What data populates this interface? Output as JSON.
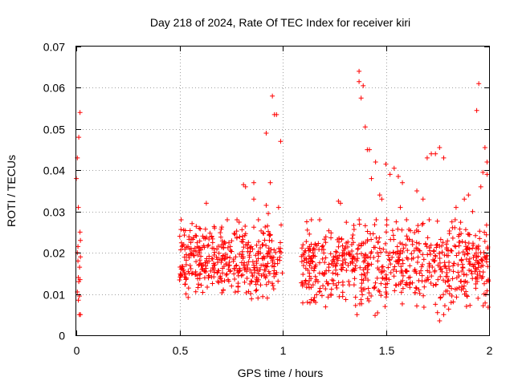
{
  "chart_data": {
    "type": "scatter",
    "title": "Day 218 of 2024, Rate Of TEC Index for receiver kiri",
    "xlabel": "GPS time / hours",
    "ylabel": "ROTI / TECUs",
    "xlim": [
      0,
      2
    ],
    "ylim": [
      0,
      0.07
    ],
    "xticks": [
      0,
      0.5,
      1,
      1.5,
      2
    ],
    "xtick_labels": [
      "0",
      "0.5",
      "1",
      "1.5",
      "2"
    ],
    "yticks": [
      0,
      0.01,
      0.02,
      0.03,
      0.04,
      0.05,
      0.06,
      0.07
    ],
    "ytick_labels": [
      "0",
      "0.01",
      "0.02",
      "0.03",
      "0.04",
      "0.05",
      "0.06",
      "0.07"
    ],
    "grid": true,
    "marker": "+",
    "color": "#ff0000",
    "series": [
      {
        "name": "ROTI",
        "points": [
          [
            0.0,
            0.038
          ],
          [
            0.005,
            0.043
          ],
          [
            0.01,
            0.031
          ],
          [
            0.012,
            0.048
          ],
          [
            0.018,
            0.054
          ],
          [
            0.005,
            0.02
          ],
          [
            0.008,
            0.018
          ],
          [
            0.01,
            0.014
          ],
          [
            0.012,
            0.013
          ],
          [
            0.015,
            0.0095
          ],
          [
            0.018,
            0.025
          ],
          [
            0.02,
            0.023
          ],
          [
            0.02,
            0.019
          ],
          [
            0.015,
            0.005
          ],
          [
            0.02,
            0.005
          ],
          [
            0.005,
            0.0105
          ],
          [
            0.01,
            0.0085
          ],
          [
            0.018,
            0.0135
          ],
          [
            0.008,
            0.0215
          ],
          [
            0.016,
            0.0165
          ],
          [
            0.92,
            0.049
          ],
          [
            0.95,
            0.058
          ],
          [
            0.96,
            0.0535
          ],
          [
            0.97,
            0.0535
          ],
          [
            0.99,
            0.047
          ],
          [
            0.82,
            0.036
          ],
          [
            0.86,
            0.037
          ],
          [
            0.94,
            0.037
          ],
          [
            0.63,
            0.032
          ],
          [
            0.81,
            0.0365
          ],
          [
            0.92,
            0.0315
          ],
          [
            0.86,
            0.033
          ],
          [
            0.98,
            0.031
          ],
          [
            0.93,
            0.0295
          ],
          [
            1.37,
            0.064
          ],
          [
            1.37,
            0.0615
          ],
          [
            1.39,
            0.0605
          ],
          [
            1.38,
            0.0575
          ],
          [
            1.4,
            0.0505
          ],
          [
            1.41,
            0.045
          ],
          [
            1.42,
            0.045
          ],
          [
            1.43,
            0.038
          ],
          [
            1.45,
            0.042
          ],
          [
            1.47,
            0.034
          ],
          [
            1.48,
            0.033
          ],
          [
            1.5,
            0.0415
          ],
          [
            1.52,
            0.039
          ],
          [
            1.54,
            0.0405
          ],
          [
            1.56,
            0.0385
          ],
          [
            1.58,
            0.037
          ],
          [
            1.6,
            0.028
          ],
          [
            1.65,
            0.035
          ],
          [
            1.7,
            0.043
          ],
          [
            1.72,
            0.044
          ],
          [
            1.74,
            0.044
          ],
          [
            1.76,
            0.0455
          ],
          [
            1.78,
            0.043
          ],
          [
            1.95,
            0.061
          ],
          [
            1.94,
            0.0545
          ],
          [
            1.96,
            0.036
          ],
          [
            1.98,
            0.0455
          ],
          [
            1.99,
            0.042
          ],
          [
            1.99,
            0.039
          ],
          [
            1.97,
            0.0395
          ],
          [
            1.27,
            0.0325
          ],
          [
            1.28,
            0.032
          ],
          [
            1.82,
            0.0275
          ],
          [
            1.84,
            0.031
          ],
          [
            1.88,
            0.033
          ],
          [
            1.9,
            0.034
          ],
          [
            1.92,
            0.03
          ],
          [
            1.55,
            0.0275
          ],
          [
            1.57,
            0.031
          ],
          [
            1.68,
            0.033
          ],
          [
            1.74,
            0.0075
          ],
          [
            1.75,
            0.0055
          ],
          [
            1.76,
            0.0035
          ],
          [
            1.78,
            0.005
          ],
          [
            1.36,
            0.005
          ],
          [
            1.12,
            0.008
          ],
          [
            1.15,
            0.0085
          ],
          [
            1.1,
            0.0195
          ],
          [
            1.11,
            0.0205
          ],
          [
            1.13,
            0.0215
          ]
        ],
        "clusters": [
          {
            "x_range": [
              0.5,
              1.0
            ],
            "y_range": [
              0.005,
              0.028
            ],
            "count": 420
          },
          {
            "x_range": [
              1.09,
              2.0
            ],
            "y_range": [
              0.003,
              0.028
            ],
            "count": 700
          }
        ]
      }
    ]
  }
}
